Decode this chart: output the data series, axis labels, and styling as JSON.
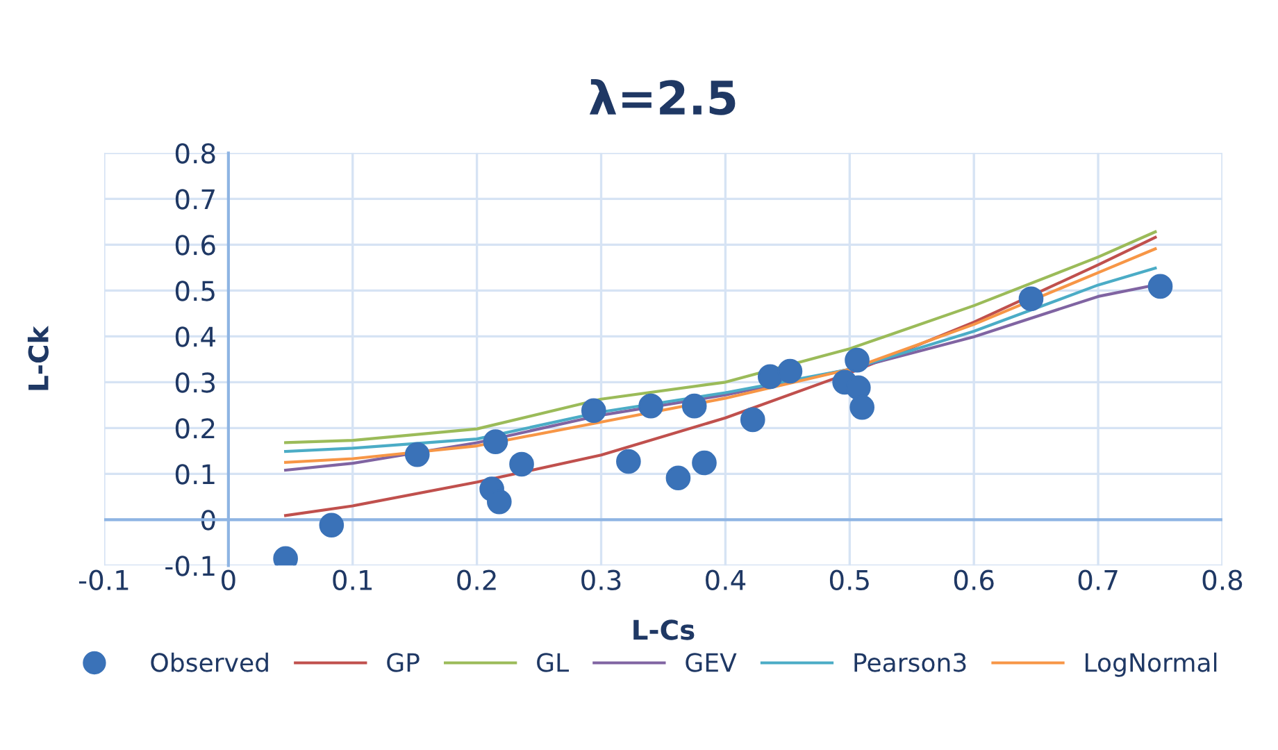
{
  "chart_data": {
    "type": "scatter",
    "title": "λ=2.5",
    "xlabel": "L-Cs",
    "ylabel": "L-Ck",
    "xlim": [
      -0.1,
      0.8
    ],
    "ylim": [
      -0.1,
      0.8
    ],
    "xticks": [
      -0.1,
      0,
      0.1,
      0.2,
      0.3,
      0.4,
      0.5,
      0.6,
      0.7,
      0.8
    ],
    "yticks": [
      -0.1,
      0,
      0.1,
      0.2,
      0.3,
      0.4,
      0.5,
      0.6,
      0.7,
      0.8
    ],
    "grid": true,
    "legend": "bottom",
    "ref_lines": [
      {
        "axis": "y",
        "value": 0,
        "color": "#8eb4e3"
      }
    ],
    "series": [
      {
        "name": "Observed",
        "marker": "circle",
        "color": "#3a72b8",
        "x": [
          0.046,
          0.083,
          0.152,
          0.215,
          0.212,
          0.218,
          0.236,
          0.294,
          0.322,
          0.34,
          0.362,
          0.375,
          0.383,
          0.422,
          0.436,
          0.452,
          0.506,
          0.496,
          0.507,
          0.51,
          0.646,
          0.75
        ],
        "values": [
          -0.085,
          -0.012,
          0.142,
          0.17,
          0.067,
          0.039,
          0.121,
          0.238,
          0.127,
          0.248,
          0.091,
          0.248,
          0.124,
          0.218,
          0.312,
          0.324,
          0.348,
          0.3,
          0.288,
          0.245,
          0.482,
          0.509
        ]
      },
      {
        "name": "GP",
        "type": "line",
        "line_style": "solid",
        "color": "#c0504d",
        "x": [
          0.046,
          0.1,
          0.2,
          0.3,
          0.4,
          0.5,
          0.6,
          0.7,
          0.746
        ],
        "values": [
          0.009,
          0.03,
          0.082,
          0.141,
          0.222,
          0.32,
          0.431,
          0.556,
          0.616
        ]
      },
      {
        "name": "GL",
        "type": "line",
        "line_style": "solid",
        "color": "#9bbb59",
        "x": [
          0.046,
          0.1,
          0.2,
          0.3,
          0.4,
          0.5,
          0.6,
          0.7,
          0.746
        ],
        "values": [
          0.168,
          0.173,
          0.198,
          0.263,
          0.3,
          0.373,
          0.467,
          0.573,
          0.628
        ]
      },
      {
        "name": "GEV",
        "type": "line",
        "line_style": "solid",
        "color": "#8064a2",
        "x": [
          0.046,
          0.1,
          0.2,
          0.3,
          0.4,
          0.5,
          0.6,
          0.7,
          0.746
        ],
        "values": [
          0.108,
          0.123,
          0.168,
          0.228,
          0.272,
          0.328,
          0.399,
          0.487,
          0.512
        ]
      },
      {
        "name": "Pearson3",
        "type": "line",
        "line_style": "solid",
        "color": "#4bacc6",
        "x": [
          0.046,
          0.1,
          0.2,
          0.3,
          0.4,
          0.5,
          0.6,
          0.7,
          0.746
        ],
        "values": [
          0.149,
          0.156,
          0.176,
          0.235,
          0.277,
          0.328,
          0.411,
          0.512,
          0.549
        ]
      },
      {
        "name": "LogNormal",
        "type": "line",
        "line_style": "solid",
        "color": "#f79646",
        "x": [
          0.046,
          0.1,
          0.2,
          0.3,
          0.4,
          0.5,
          0.6,
          0.7,
          0.746
        ],
        "values": [
          0.125,
          0.133,
          0.161,
          0.213,
          0.265,
          0.328,
          0.426,
          0.539,
          0.591
        ]
      }
    ]
  }
}
